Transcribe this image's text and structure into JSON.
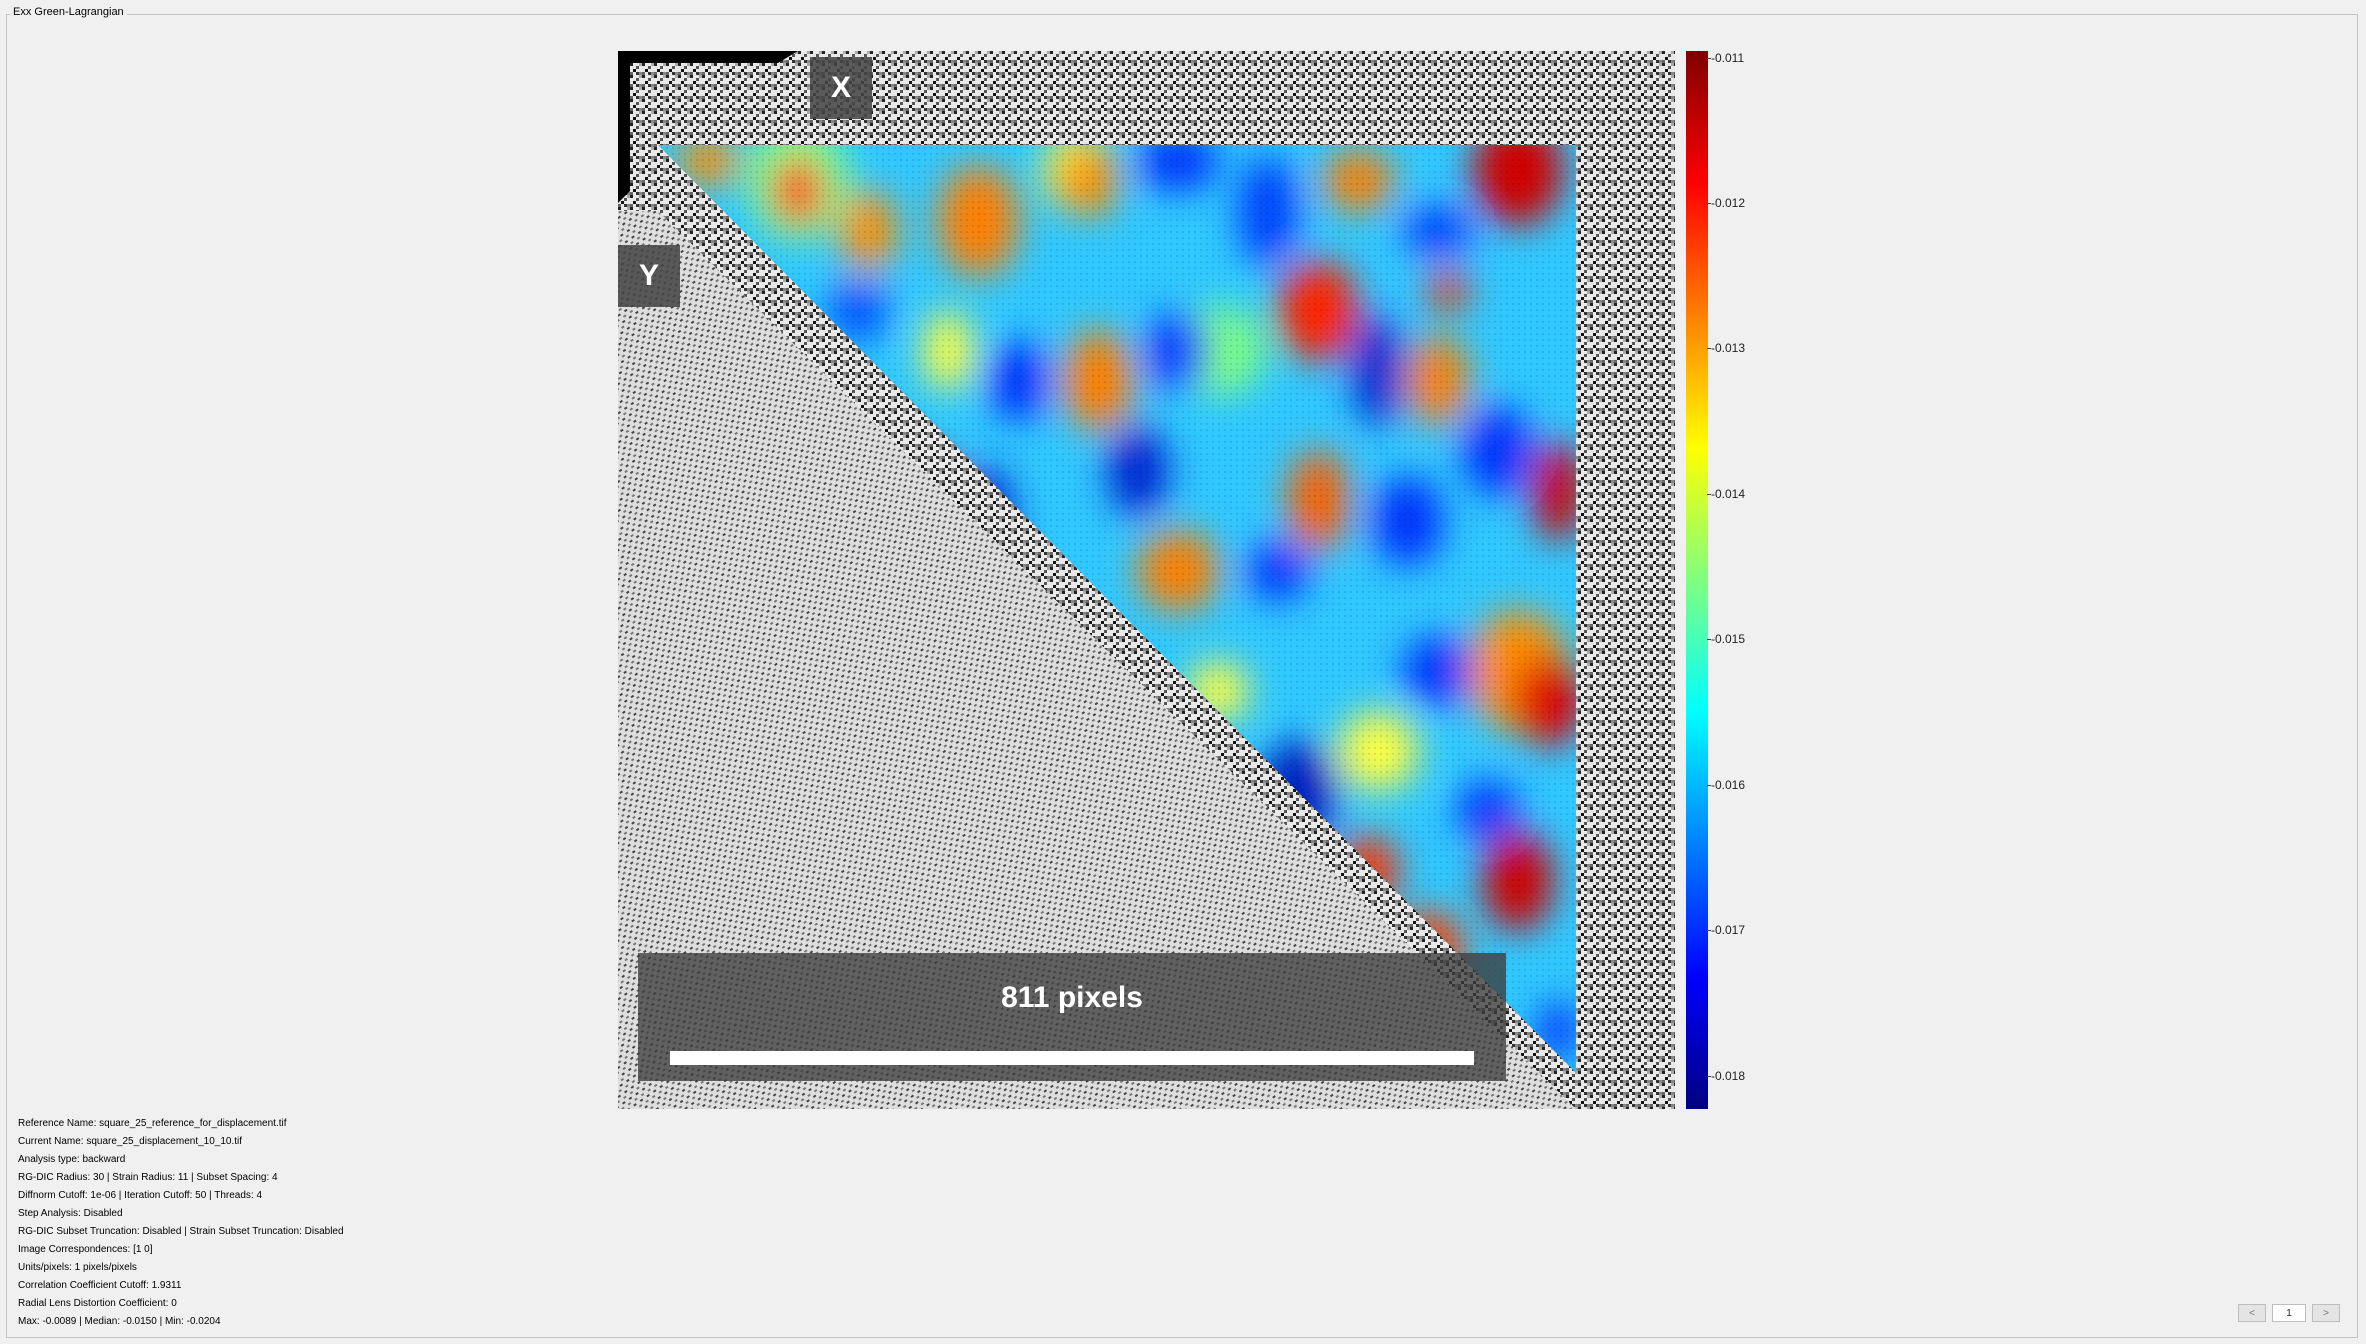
{
  "panel": {
    "title": "Exx Green-Lagrangian"
  },
  "plot": {
    "axis_x_label": "X",
    "axis_y_label": "Y",
    "scalebar_label": "811 pixels"
  },
  "colorbar": {
    "ticks": [
      "-0.011",
      "-0.012",
      "-0.013",
      "-0.014",
      "-0.015",
      "-0.016",
      "-0.017",
      "-0.018"
    ],
    "colors": [
      "#800000",
      "#ff0000",
      "#ff8000",
      "#ffff00",
      "#80ff80",
      "#00ffff",
      "#0080ff",
      "#0000ff",
      "#000080"
    ]
  },
  "info": {
    "lines": [
      "Reference Name: square_25_reference_for_displacement.tif",
      "Current Name: square_25_displacement_10_10.tif",
      "Analysis type: backward",
      "RG-DIC Radius: 30 | Strain Radius: 11 | Subset Spacing: 4",
      "Diffnorm Cutoff: 1e-06 | Iteration Cutoff: 50 | Threads: 4",
      "Step Analysis: Disabled",
      "RG-DIC Subset Truncation: Disabled | Strain Subset Truncation: Disabled",
      "Image Correspondences: [1 0]",
      "Units/pixels: 1 pixels/pixels",
      "Correlation Coefficient Cutoff: 1.9311",
      "Radial Lens Distortion Coefficient: 0",
      "Max: -0.0089 | Median: -0.0150 | Min: -0.0204"
    ]
  },
  "pager": {
    "prev": "<",
    "current": "1",
    "next": ">"
  }
}
